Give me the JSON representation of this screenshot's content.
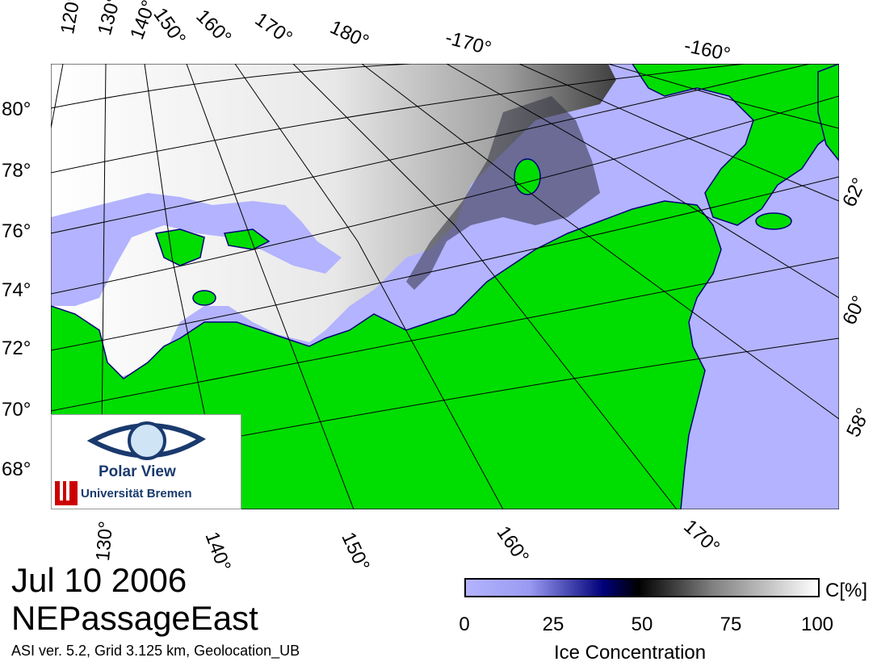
{
  "title": {
    "date": "Jul 10 2006",
    "region": "NEPassageEast",
    "meta": "ASI ver. 5.2,  Grid 3.125 km, Geolocation_UB"
  },
  "colorbar": {
    "label": "Ice Concentration",
    "unit": "C[%]",
    "ticks": [
      "0",
      "25",
      "50",
      "75",
      "100"
    ],
    "colors": {
      "open_water": "#b3b3ff",
      "land": "#00dd00",
      "ice_high": "#ffffff",
      "ice_mid": "#000000"
    }
  },
  "map": {
    "top_lon_labels": [
      "120°",
      "130°",
      "140°",
      "150°",
      "160°",
      "170°",
      "180°",
      "-170°",
      "-160°"
    ],
    "left_lat_labels": [
      "80°",
      "78°",
      "76°",
      "74°",
      "72°",
      "70°",
      "68°"
    ],
    "right_lat_labels": [
      "62°",
      "60°",
      "58°"
    ],
    "bottom_lon_labels": [
      "130°",
      "140°",
      "150°",
      "160°",
      "170°"
    ]
  },
  "logo": {
    "name": "Polar View",
    "institution": "Universität Bremen"
  }
}
